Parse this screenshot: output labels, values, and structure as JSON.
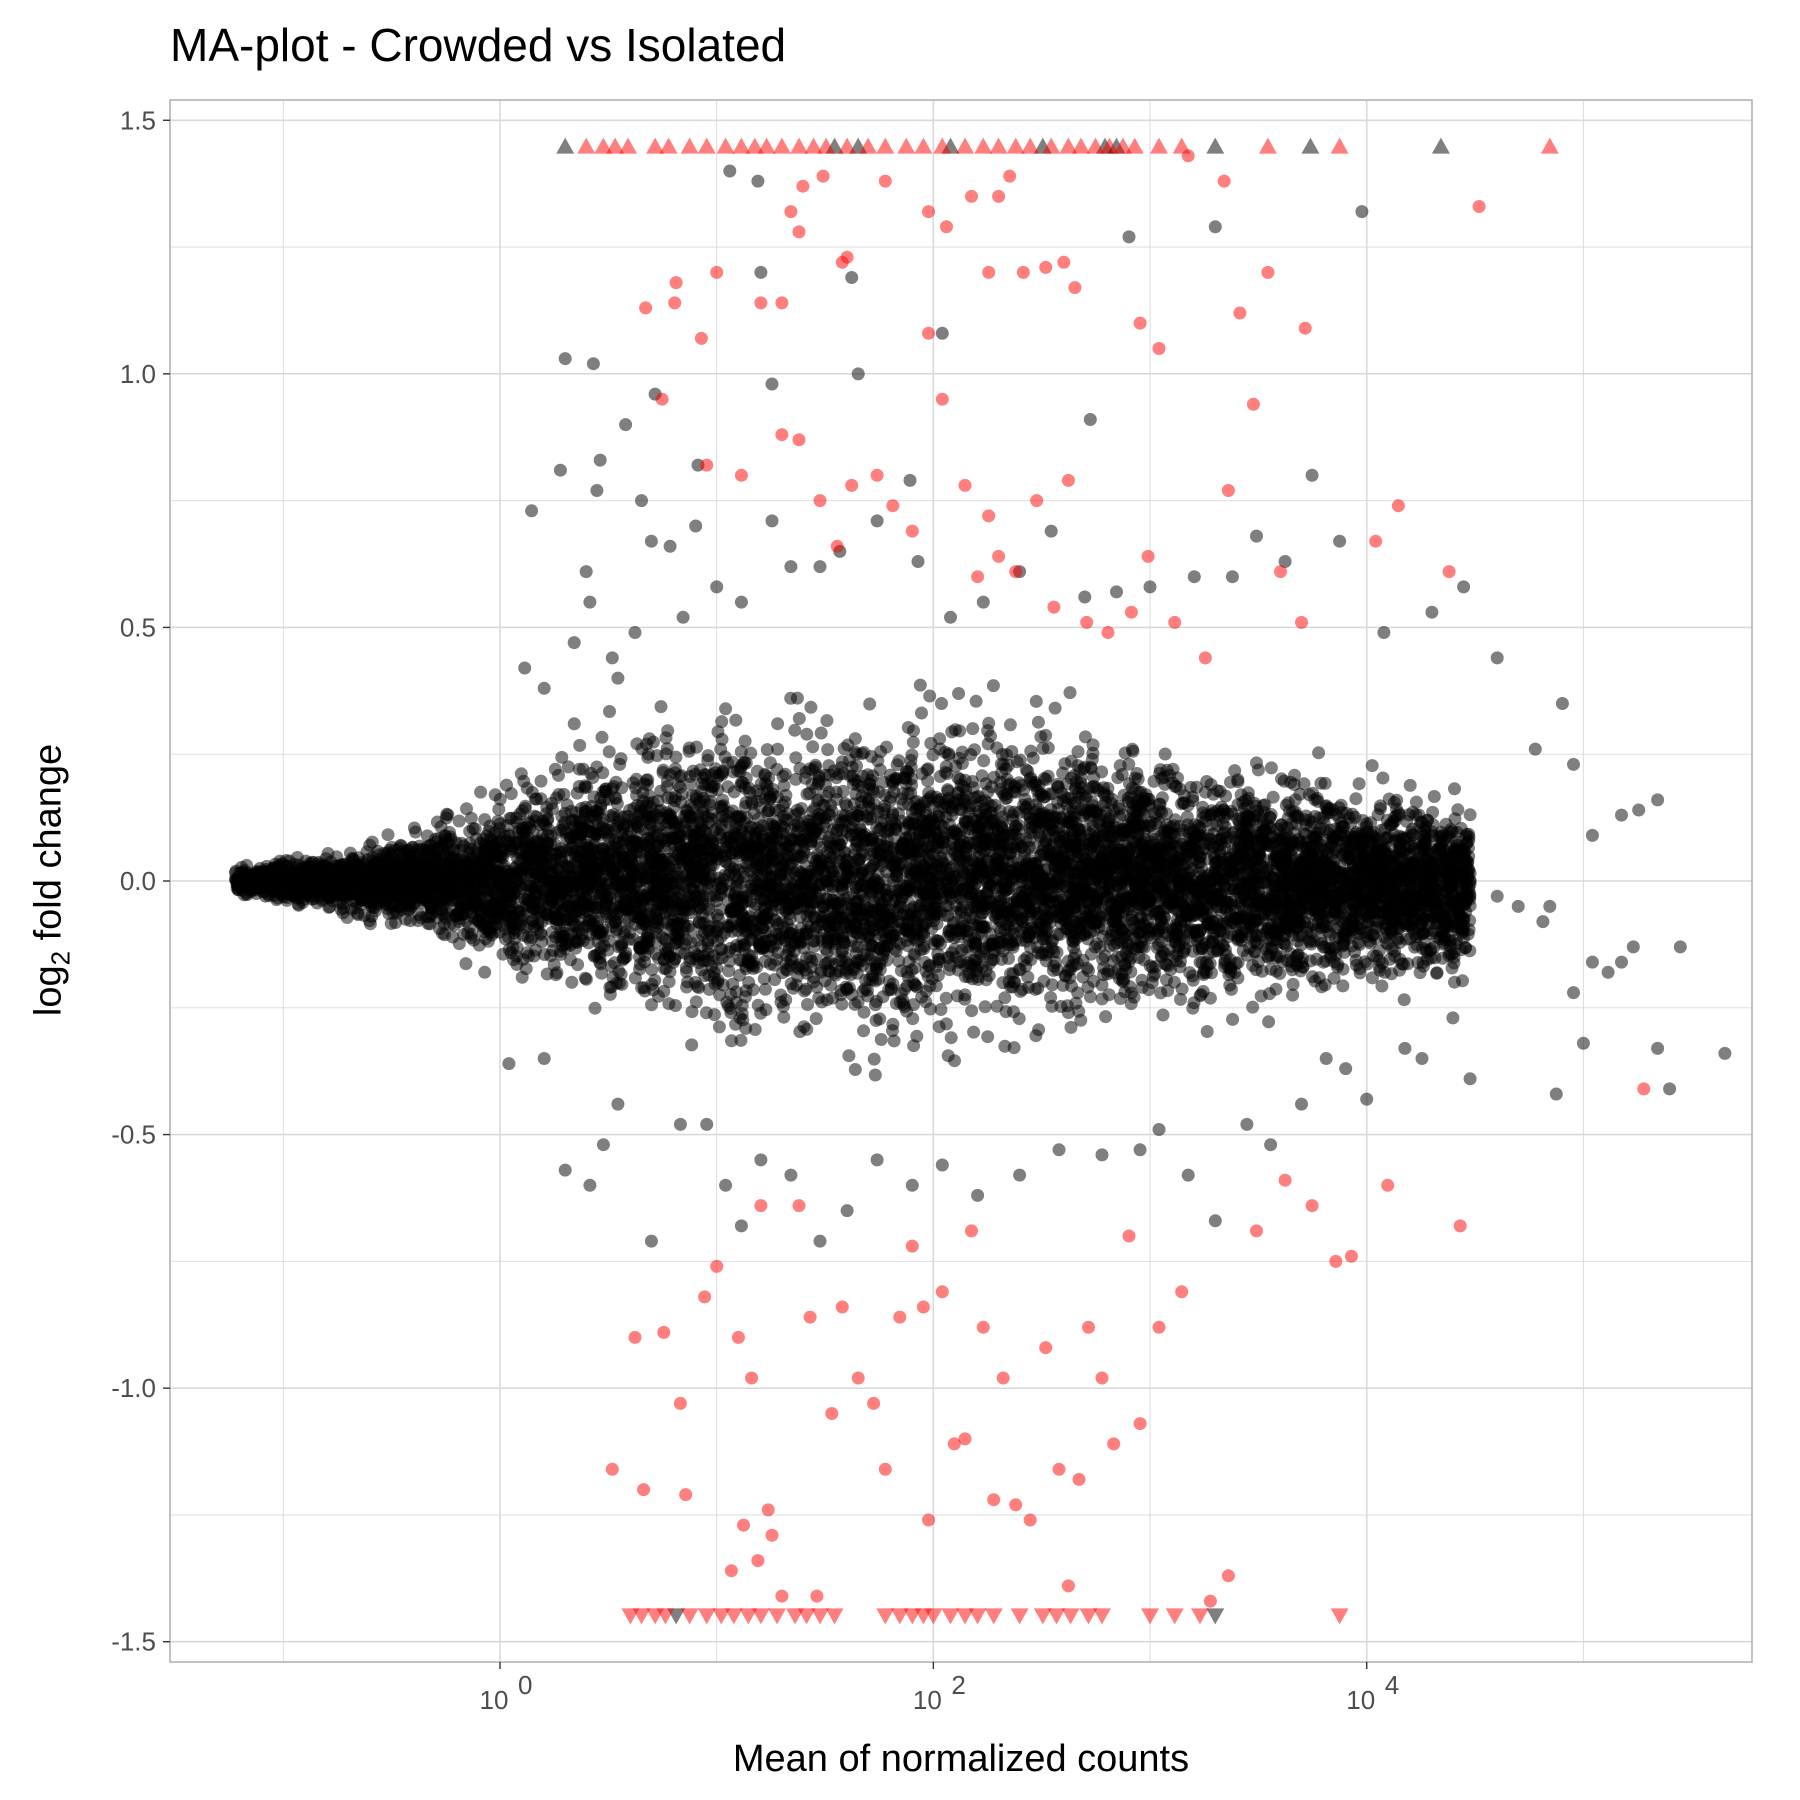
{
  "chart_data": {
    "type": "scatter",
    "title": "MA-plot - Crowded vs Isolated",
    "xlabel": "Mean of normalized counts",
    "ylabel": {
      "prefix": "log",
      "subscript": "2",
      "suffix": " fold change"
    },
    "x_scale": "log10",
    "xlim": [
      0.03,
      600000
    ],
    "ylim": [
      -1.54,
      1.54
    ],
    "x_ticks": [
      {
        "value": 1,
        "label_base": "10",
        "label_exp": "0"
      },
      {
        "value": 100,
        "label_base": "10",
        "label_exp": "2"
      },
      {
        "value": 10000,
        "label_base": "10",
        "label_exp": "4"
      }
    ],
    "y_ticks": [
      {
        "value": 1.5,
        "label": "1.5"
      },
      {
        "value": 1.0,
        "label": "1.0"
      },
      {
        "value": 0.5,
        "label": "0.5"
      },
      {
        "value": 0.0,
        "label": "0.0"
      },
      {
        "value": -0.5,
        "label": "-0.5"
      },
      {
        "value": -1.0,
        "label": "-1.0"
      },
      {
        "value": -1.5,
        "label": "-1.5"
      }
    ],
    "grid": true,
    "colors": {
      "not_significant": "#000000",
      "significant": "#ff0000",
      "grid": "#d9d9d9",
      "panel_border": "#b3b3b3"
    },
    "series": [
      {
        "category": "not_significant",
        "marker": "circle",
        "points": [
          [
            2.0,
            1.03
          ],
          [
            2.7,
            1.02
          ],
          [
            2.8,
            0.77
          ],
          [
            2.9,
            0.83
          ],
          [
            3.8,
            0.9
          ],
          [
            5.2,
            0.96
          ],
          [
            8.2,
            0.82
          ],
          [
            11.5,
            1.4
          ],
          [
            15.5,
            1.38
          ],
          [
            16.0,
            1.2
          ],
          [
            18.0,
            0.98
          ],
          [
            42.0,
            1.19
          ],
          [
            45.0,
            1.0
          ],
          [
            78.0,
            0.79
          ],
          [
            110.0,
            1.08
          ],
          [
            530.0,
            0.91
          ],
          [
            800.0,
            1.27
          ],
          [
            2000.0,
            1.29
          ],
          [
            9500.0,
            1.32
          ],
          [
            1.9,
            0.81
          ],
          [
            1.4,
            0.73
          ],
          [
            2.2,
            0.47
          ],
          [
            2.5,
            0.61
          ],
          [
            2.6,
            0.55
          ],
          [
            3.3,
            0.44
          ],
          [
            3.5,
            0.4
          ],
          [
            4.2,
            0.49
          ],
          [
            4.5,
            0.75
          ],
          [
            5.0,
            0.67
          ],
          [
            6.1,
            0.66
          ],
          [
            7.0,
            0.52
          ],
          [
            8.0,
            0.7
          ],
          [
            10.0,
            0.58
          ],
          [
            13.0,
            0.55
          ],
          [
            18.0,
            0.71
          ],
          [
            22.0,
            0.62
          ],
          [
            30.0,
            0.62
          ],
          [
            37.0,
            0.65
          ],
          [
            55.0,
            0.71
          ],
          [
            85.0,
            0.63
          ],
          [
            120.0,
            0.52
          ],
          [
            170.0,
            0.55
          ],
          [
            250.0,
            0.61
          ],
          [
            350.0,
            0.69
          ],
          [
            500.0,
            0.56
          ],
          [
            700.0,
            0.57
          ],
          [
            1000.0,
            0.58
          ],
          [
            1600.0,
            0.6
          ],
          [
            2400.0,
            0.6
          ],
          [
            3100.0,
            0.68
          ],
          [
            4200.0,
            0.63
          ],
          [
            5600.0,
            0.8
          ],
          [
            7500.0,
            0.67
          ],
          [
            12000.0,
            0.49
          ],
          [
            20000.0,
            0.53
          ],
          [
            28000.0,
            0.58
          ],
          [
            40000.0,
            0.44
          ],
          [
            60000.0,
            0.26
          ],
          [
            80000.0,
            0.35
          ],
          [
            90000.0,
            0.23
          ],
          [
            110000.0,
            0.09
          ],
          [
            150000.0,
            0.13
          ],
          [
            180000.0,
            0.14
          ],
          [
            220000.0,
            0.16
          ],
          [
            170000.0,
            -0.13
          ],
          [
            280000.0,
            -0.13
          ],
          [
            450000.0,
            -0.34
          ],
          [
            250000.0,
            -0.41
          ],
          [
            220000.0,
            -0.33
          ],
          [
            130000.0,
            -0.18
          ],
          [
            110000.0,
            -0.16
          ],
          [
            90000.0,
            -0.22
          ],
          [
            75000.0,
            -0.42
          ],
          [
            70000.0,
            -0.05
          ],
          [
            50000.0,
            -0.05
          ],
          [
            40000.0,
            -0.03
          ],
          [
            65000.0,
            -0.08
          ],
          [
            100000.0,
            -0.32
          ],
          [
            150000.0,
            -0.16
          ],
          [
            30000.0,
            -0.39
          ],
          [
            25000.0,
            -0.27
          ],
          [
            18000.0,
            -0.35
          ],
          [
            15000.0,
            -0.33
          ],
          [
            10000.0,
            -0.43
          ],
          [
            8000.0,
            -0.37
          ],
          [
            6500.0,
            -0.35
          ],
          [
            5000.0,
            -0.44
          ],
          [
            3600.0,
            -0.52
          ],
          [
            2800.0,
            -0.48
          ],
          [
            2000.0,
            -0.67
          ],
          [
            1500.0,
            -0.58
          ],
          [
            1100.0,
            -0.49
          ],
          [
            900.0,
            -0.53
          ],
          [
            600.0,
            -0.54
          ],
          [
            380.0,
            -0.53
          ],
          [
            250.0,
            -0.58
          ],
          [
            160.0,
            -0.62
          ],
          [
            110.0,
            -0.56
          ],
          [
            80.0,
            -0.6
          ],
          [
            55.0,
            -0.55
          ],
          [
            40.0,
            -0.65
          ],
          [
            30.0,
            -0.71
          ],
          [
            22.0,
            -0.58
          ],
          [
            16.0,
            -0.55
          ],
          [
            13.0,
            -0.68
          ],
          [
            11.0,
            -0.6
          ],
          [
            9.0,
            -0.48
          ],
          [
            6.8,
            -0.48
          ],
          [
            5.0,
            -0.71
          ],
          [
            3.5,
            -0.44
          ],
          [
            3.0,
            -0.52
          ],
          [
            2.6,
            -0.6
          ],
          [
            2.0,
            -0.57
          ],
          [
            1.6,
            -0.35
          ],
          [
            1.1,
            -0.36
          ],
          [
            0.85,
            -0.18
          ],
          [
            0.95,
            0.17
          ],
          [
            1.3,
            0.42
          ],
          [
            1.6,
            0.38
          ],
          [
            2.2,
            0.31
          ]
        ],
        "cloud": [
          [
            0.06,
            0.0,
            0.012
          ],
          [
            0.1,
            0.0,
            0.015
          ],
          [
            0.2,
            0.0,
            0.025
          ],
          [
            0.5,
            0.0,
            0.045
          ],
          [
            1.0,
            0.0,
            0.07
          ],
          [
            3.0,
            0.01,
            0.1
          ],
          [
            10.0,
            0.01,
            0.12
          ],
          [
            30.0,
            0.0,
            0.13
          ],
          [
            100.0,
            0.01,
            0.13
          ],
          [
            300.0,
            0.02,
            0.12
          ],
          [
            1000.0,
            0.01,
            0.1
          ],
          [
            3000.0,
            0.0,
            0.09
          ],
          [
            10000.0,
            -0.01,
            0.08
          ],
          [
            30000.0,
            -0.01,
            0.07
          ]
        ],
        "triangles_up_x": [
          2.0,
          35.0,
          45.0,
          120.0,
          320.0,
          620.0,
          700.0,
          2000.0,
          5500.0,
          22000.0
        ],
        "triangles_down_x": [
          6.5,
          2000.0
        ]
      },
      {
        "category": "significant",
        "marker": "circle",
        "points": [
          [
            4.7,
            1.13
          ],
          [
            6.4,
            1.14
          ],
          [
            6.5,
            1.18
          ],
          [
            8.5,
            1.07
          ],
          [
            10.0,
            1.2
          ],
          [
            16.0,
            1.14
          ],
          [
            20.0,
            1.14
          ],
          [
            22.0,
            1.32
          ],
          [
            24.0,
            1.28
          ],
          [
            25.0,
            1.37
          ],
          [
            31.0,
            1.39
          ],
          [
            38.0,
            1.22
          ],
          [
            40.0,
            1.23
          ],
          [
            60.0,
            1.38
          ],
          [
            95.0,
            1.32
          ],
          [
            115.0,
            1.29
          ],
          [
            150.0,
            1.35
          ],
          [
            180.0,
            1.2
          ],
          [
            200.0,
            1.35
          ],
          [
            225.0,
            1.39
          ],
          [
            260.0,
            1.2
          ],
          [
            330.0,
            1.21
          ],
          [
            400.0,
            1.22
          ],
          [
            450.0,
            1.17
          ],
          [
            900.0,
            1.1
          ],
          [
            1100.0,
            1.05
          ],
          [
            1500.0,
            1.43
          ],
          [
            2200.0,
            1.38
          ],
          [
            2600.0,
            1.12
          ],
          [
            3500.0,
            1.2
          ],
          [
            5200.0,
            1.09
          ],
          [
            33000.0,
            1.33
          ],
          [
            5.6,
            0.95
          ],
          [
            9.0,
            0.82
          ],
          [
            13.0,
            0.8
          ],
          [
            20.0,
            0.88
          ],
          [
            24.0,
            0.87
          ],
          [
            30.0,
            0.75
          ],
          [
            36.0,
            0.66
          ],
          [
            42.0,
            0.78
          ],
          [
            55.0,
            0.8
          ],
          [
            65.0,
            0.74
          ],
          [
            80.0,
            0.69
          ],
          [
            95.0,
            1.08
          ],
          [
            110.0,
            0.95
          ],
          [
            140.0,
            0.78
          ],
          [
            160.0,
            0.6
          ],
          [
            180.0,
            0.72
          ],
          [
            200.0,
            0.64
          ],
          [
            240.0,
            0.61
          ],
          [
            300.0,
            0.75
          ],
          [
            360.0,
            0.54
          ],
          [
            420.0,
            0.79
          ],
          [
            510.0,
            0.51
          ],
          [
            640.0,
            0.49
          ],
          [
            820.0,
            0.53
          ],
          [
            980.0,
            0.64
          ],
          [
            1300.0,
            0.51
          ],
          [
            1800.0,
            0.44
          ],
          [
            2300.0,
            0.77
          ],
          [
            3000.0,
            0.94
          ],
          [
            4000.0,
            0.61
          ],
          [
            5000.0,
            0.51
          ],
          [
            11000.0,
            0.67
          ],
          [
            14000.0,
            0.74
          ],
          [
            24000.0,
            0.61
          ],
          [
            3.3,
            -1.16
          ],
          [
            4.6,
            -1.2
          ],
          [
            5.7,
            -0.89
          ],
          [
            6.8,
            -1.03
          ],
          [
            7.2,
            -1.21
          ],
          [
            8.8,
            -0.82
          ],
          [
            10.0,
            -0.76
          ],
          [
            11.7,
            -1.36
          ],
          [
            12.6,
            -0.9
          ],
          [
            13.3,
            -1.27
          ],
          [
            14.5,
            -0.98
          ],
          [
            15.5,
            -1.34
          ],
          [
            16.0,
            -0.64
          ],
          [
            17.3,
            -1.24
          ],
          [
            18.0,
            -1.29
          ],
          [
            20.0,
            -1.41
          ],
          [
            24.0,
            -0.64
          ],
          [
            27.0,
            -0.86
          ],
          [
            29.0,
            -1.41
          ],
          [
            34.0,
            -1.05
          ],
          [
            38.0,
            -0.84
          ],
          [
            45.0,
            -0.98
          ],
          [
            53.0,
            -1.03
          ],
          [
            60.0,
            -1.16
          ],
          [
            70.0,
            -0.86
          ],
          [
            80.0,
            -0.72
          ],
          [
            90.0,
            -0.84
          ],
          [
            95.0,
            -1.26
          ],
          [
            110.0,
            -0.81
          ],
          [
            125.0,
            -1.11
          ],
          [
            140.0,
            -1.1
          ],
          [
            150.0,
            -0.69
          ],
          [
            170.0,
            -0.88
          ],
          [
            190.0,
            -1.22
          ],
          [
            210.0,
            -0.98
          ],
          [
            240.0,
            -1.23
          ],
          [
            280.0,
            -1.26
          ],
          [
            330.0,
            -0.92
          ],
          [
            380.0,
            -1.16
          ],
          [
            420.0,
            -1.39
          ],
          [
            470.0,
            -1.18
          ],
          [
            520.0,
            -0.88
          ],
          [
            600.0,
            -0.98
          ],
          [
            680.0,
            -1.11
          ],
          [
            800.0,
            -0.7
          ],
          [
            900.0,
            -1.07
          ],
          [
            1100.0,
            -0.88
          ],
          [
            1400.0,
            -0.81
          ],
          [
            1900.0,
            -1.42
          ],
          [
            2300.0,
            -1.37
          ],
          [
            3100.0,
            -0.69
          ],
          [
            4200.0,
            -0.59
          ],
          [
            5600.0,
            -0.64
          ],
          [
            7200.0,
            -0.75
          ],
          [
            8500.0,
            -0.74
          ],
          [
            12500.0,
            -0.6
          ],
          [
            27000.0,
            -0.68
          ],
          [
            190000.0,
            -0.41
          ],
          [
            4.2,
            -0.9
          ]
        ],
        "triangles_up_x": [
          2.5,
          3.0,
          3.4,
          3.9,
          5.2,
          6.0,
          7.5,
          9.0,
          11.0,
          13.0,
          15.0,
          17.0,
          20.0,
          24.0,
          28.0,
          32.0,
          40.0,
          50.0,
          60.0,
          75.0,
          90.0,
          110.0,
          140.0,
          170.0,
          200.0,
          240.0,
          280.0,
          350.0,
          420.0,
          480.0,
          560.0,
          650.0,
          750.0,
          850.0,
          1100.0,
          1400.0,
          3500.0,
          7500.0,
          70000.0
        ],
        "triangles_down_x": [
          4.0,
          4.5,
          5.2,
          5.8,
          7.5,
          9.0,
          10.5,
          12.0,
          14.0,
          16.0,
          19.0,
          23.0,
          26.0,
          30.0,
          35.0,
          60.0,
          70.0,
          80.0,
          90.0,
          100.0,
          120.0,
          140.0,
          160.0,
          190.0,
          250.0,
          320.0,
          370.0,
          430.0,
          520.0,
          600.0,
          1000.0,
          1300.0,
          1700.0,
          7500.0
        ]
      }
    ]
  }
}
